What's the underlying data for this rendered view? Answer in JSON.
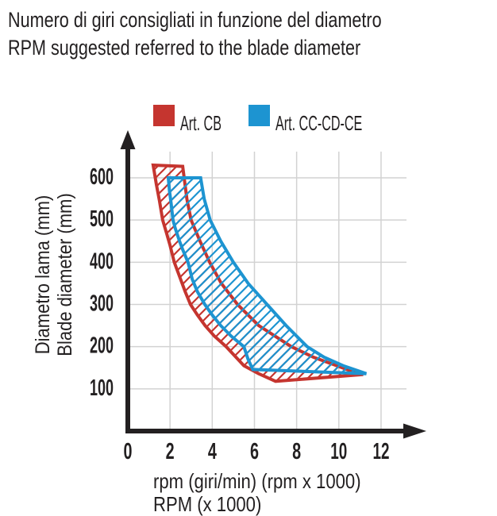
{
  "title": {
    "line1": "Numero di giri consigliati in funzione del diametro",
    "line2": "RPM suggested referred to the blade diameter"
  },
  "legend": {
    "items": [
      {
        "label": "Art. CB",
        "color": "#c5352f"
      },
      {
        "label": "Art. CC-CD-CE",
        "color": "#1d94d1"
      }
    ]
  },
  "y_axis": {
    "label_line1": "Diametro lama (mm)",
    "label_line2": "Blade diameter (mm)"
  },
  "x_axis": {
    "label_line1": "rpm (giri/min) (rpm x 1000)",
    "label_line2": "RPM (x 1000)"
  },
  "colors": {
    "background": "#ffffff",
    "text": "#232021",
    "axis": "#232021",
    "grid": "#d2d2d2",
    "red": "#c5352f",
    "blue": "#1d94d1"
  },
  "chart_data": {
    "type": "area",
    "title": "Numero di giri consigliati in funzione del diametro / RPM suggested referred to the blade diameter",
    "xlabel": "rpm (giri/min) (rpm x 1000) / RPM (x 1000)",
    "ylabel": "Diametro lama (mm) / Blade diameter (mm)",
    "xlim": [
      0,
      13.2
    ],
    "ylim": [
      0,
      680
    ],
    "x_ticks": [
      0,
      2,
      4,
      6,
      8,
      10,
      12
    ],
    "y_ticks": [
      100,
      200,
      300,
      400,
      500,
      600
    ],
    "grid": true,
    "legend_position": "top",
    "units": {
      "x": "rpm x 1000",
      "y": "mm"
    },
    "series": [
      {
        "name": "Art. CB",
        "color": "#c5352f",
        "style": "hatched-band",
        "hatch": "diagonal /",
        "outline_rpm_diameter": [
          [
            1.2,
            630
          ],
          [
            2.6,
            627
          ],
          [
            2.8,
            550
          ],
          [
            3.0,
            500
          ],
          [
            3.42,
            450
          ],
          [
            3.88,
            400
          ],
          [
            4.43,
            350
          ],
          [
            5.2,
            300
          ],
          [
            6.2,
            250
          ],
          [
            7.75,
            200
          ],
          [
            8.8,
            175
          ],
          [
            9.9,
            155
          ],
          [
            10.7,
            140
          ],
          [
            11.15,
            134
          ],
          [
            7.0,
            118
          ],
          [
            6.2,
            136
          ],
          [
            5.5,
            155
          ],
          [
            4.66,
            200
          ],
          [
            4.1,
            225
          ],
          [
            3.66,
            250
          ],
          [
            3.3,
            275
          ],
          [
            2.97,
            300
          ],
          [
            2.72,
            330
          ],
          [
            2.5,
            360
          ],
          [
            2.2,
            400
          ],
          [
            2.0,
            440
          ],
          [
            1.83,
            470
          ],
          [
            1.65,
            500
          ],
          [
            1.5,
            545
          ],
          [
            1.35,
            585
          ]
        ]
      },
      {
        "name": "Art. CC-CD-CE",
        "color": "#1d94d1",
        "style": "hatched-band",
        "hatch": "diagonal /",
        "outline_rpm_diameter": [
          [
            1.92,
            600
          ],
          [
            3.45,
            600
          ],
          [
            3.62,
            550
          ],
          [
            3.9,
            500
          ],
          [
            4.4,
            450
          ],
          [
            5.0,
            400
          ],
          [
            5.7,
            350
          ],
          [
            6.6,
            300
          ],
          [
            7.5,
            250
          ],
          [
            8.5,
            200
          ],
          [
            9.3,
            175
          ],
          [
            10.2,
            155
          ],
          [
            11.3,
            136
          ],
          [
            5.92,
            146
          ],
          [
            5.7,
            170
          ],
          [
            5.5,
            200
          ],
          [
            4.9,
            225
          ],
          [
            4.4,
            250
          ],
          [
            4.0,
            275
          ],
          [
            3.65,
            300
          ],
          [
            3.3,
            330
          ],
          [
            3.05,
            360
          ],
          [
            2.85,
            400
          ],
          [
            2.6,
            430
          ],
          [
            2.45,
            450
          ],
          [
            2.25,
            480
          ],
          [
            2.14,
            500
          ],
          [
            2.05,
            540
          ],
          [
            1.97,
            570
          ]
        ]
      }
    ]
  }
}
